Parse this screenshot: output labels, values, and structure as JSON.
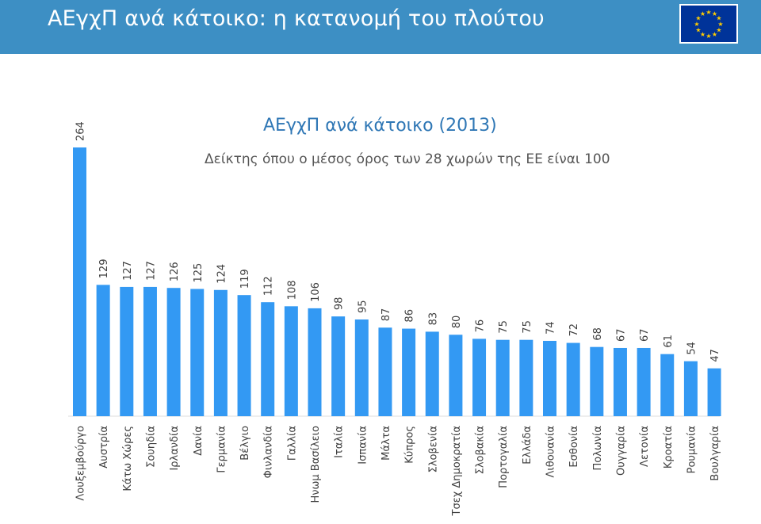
{
  "header": {
    "title": "ΑΕγχΠ ανά κάτοικο: η κατανομή του πλούτου",
    "flag_icon": "eu-flag-icon",
    "background_color": "#3d8fc4"
  },
  "chart_data": {
    "type": "bar",
    "title": "ΑΕγχΠ ανά κάτοικο (2013)",
    "subtitle": "Δείκτης όπου ο μέσος όρος των 28 χωρών της ΕΕ είναι 100",
    "categories": [
      "Λουξεμβούργο",
      "Αυστρία",
      "Κάτω Χώρες",
      "Σουηδία",
      "Ιρλανδία",
      "Δανία",
      "Γερμανία",
      "Βέλγιο",
      "Φινλανδία",
      "Γαλλία",
      "Ηνωμ Βασίλειο",
      "Ιταλία",
      "Ισπανία",
      "Μάλτα",
      "Κύπρος",
      "Σλοβενία",
      "Τσεχ Δημοκρατία",
      "Σλοβακία",
      "Πορτογαλία",
      "Ελλάδα",
      "Λιθουανία",
      "Εσθονία",
      "Πολωνία",
      "Ουγγαρία",
      "Λετονία",
      "Κροατία",
      "Ρουμανία",
      "Βουλγαρία"
    ],
    "values": [
      264,
      129,
      127,
      127,
      126,
      125,
      124,
      119,
      112,
      108,
      106,
      98,
      95,
      87,
      86,
      83,
      80,
      76,
      75,
      75,
      74,
      72,
      68,
      67,
      67,
      61,
      54,
      47
    ],
    "bar_color": "#3399f3",
    "ylim": [
      0,
      264
    ],
    "grid": false,
    "legend": "none"
  }
}
